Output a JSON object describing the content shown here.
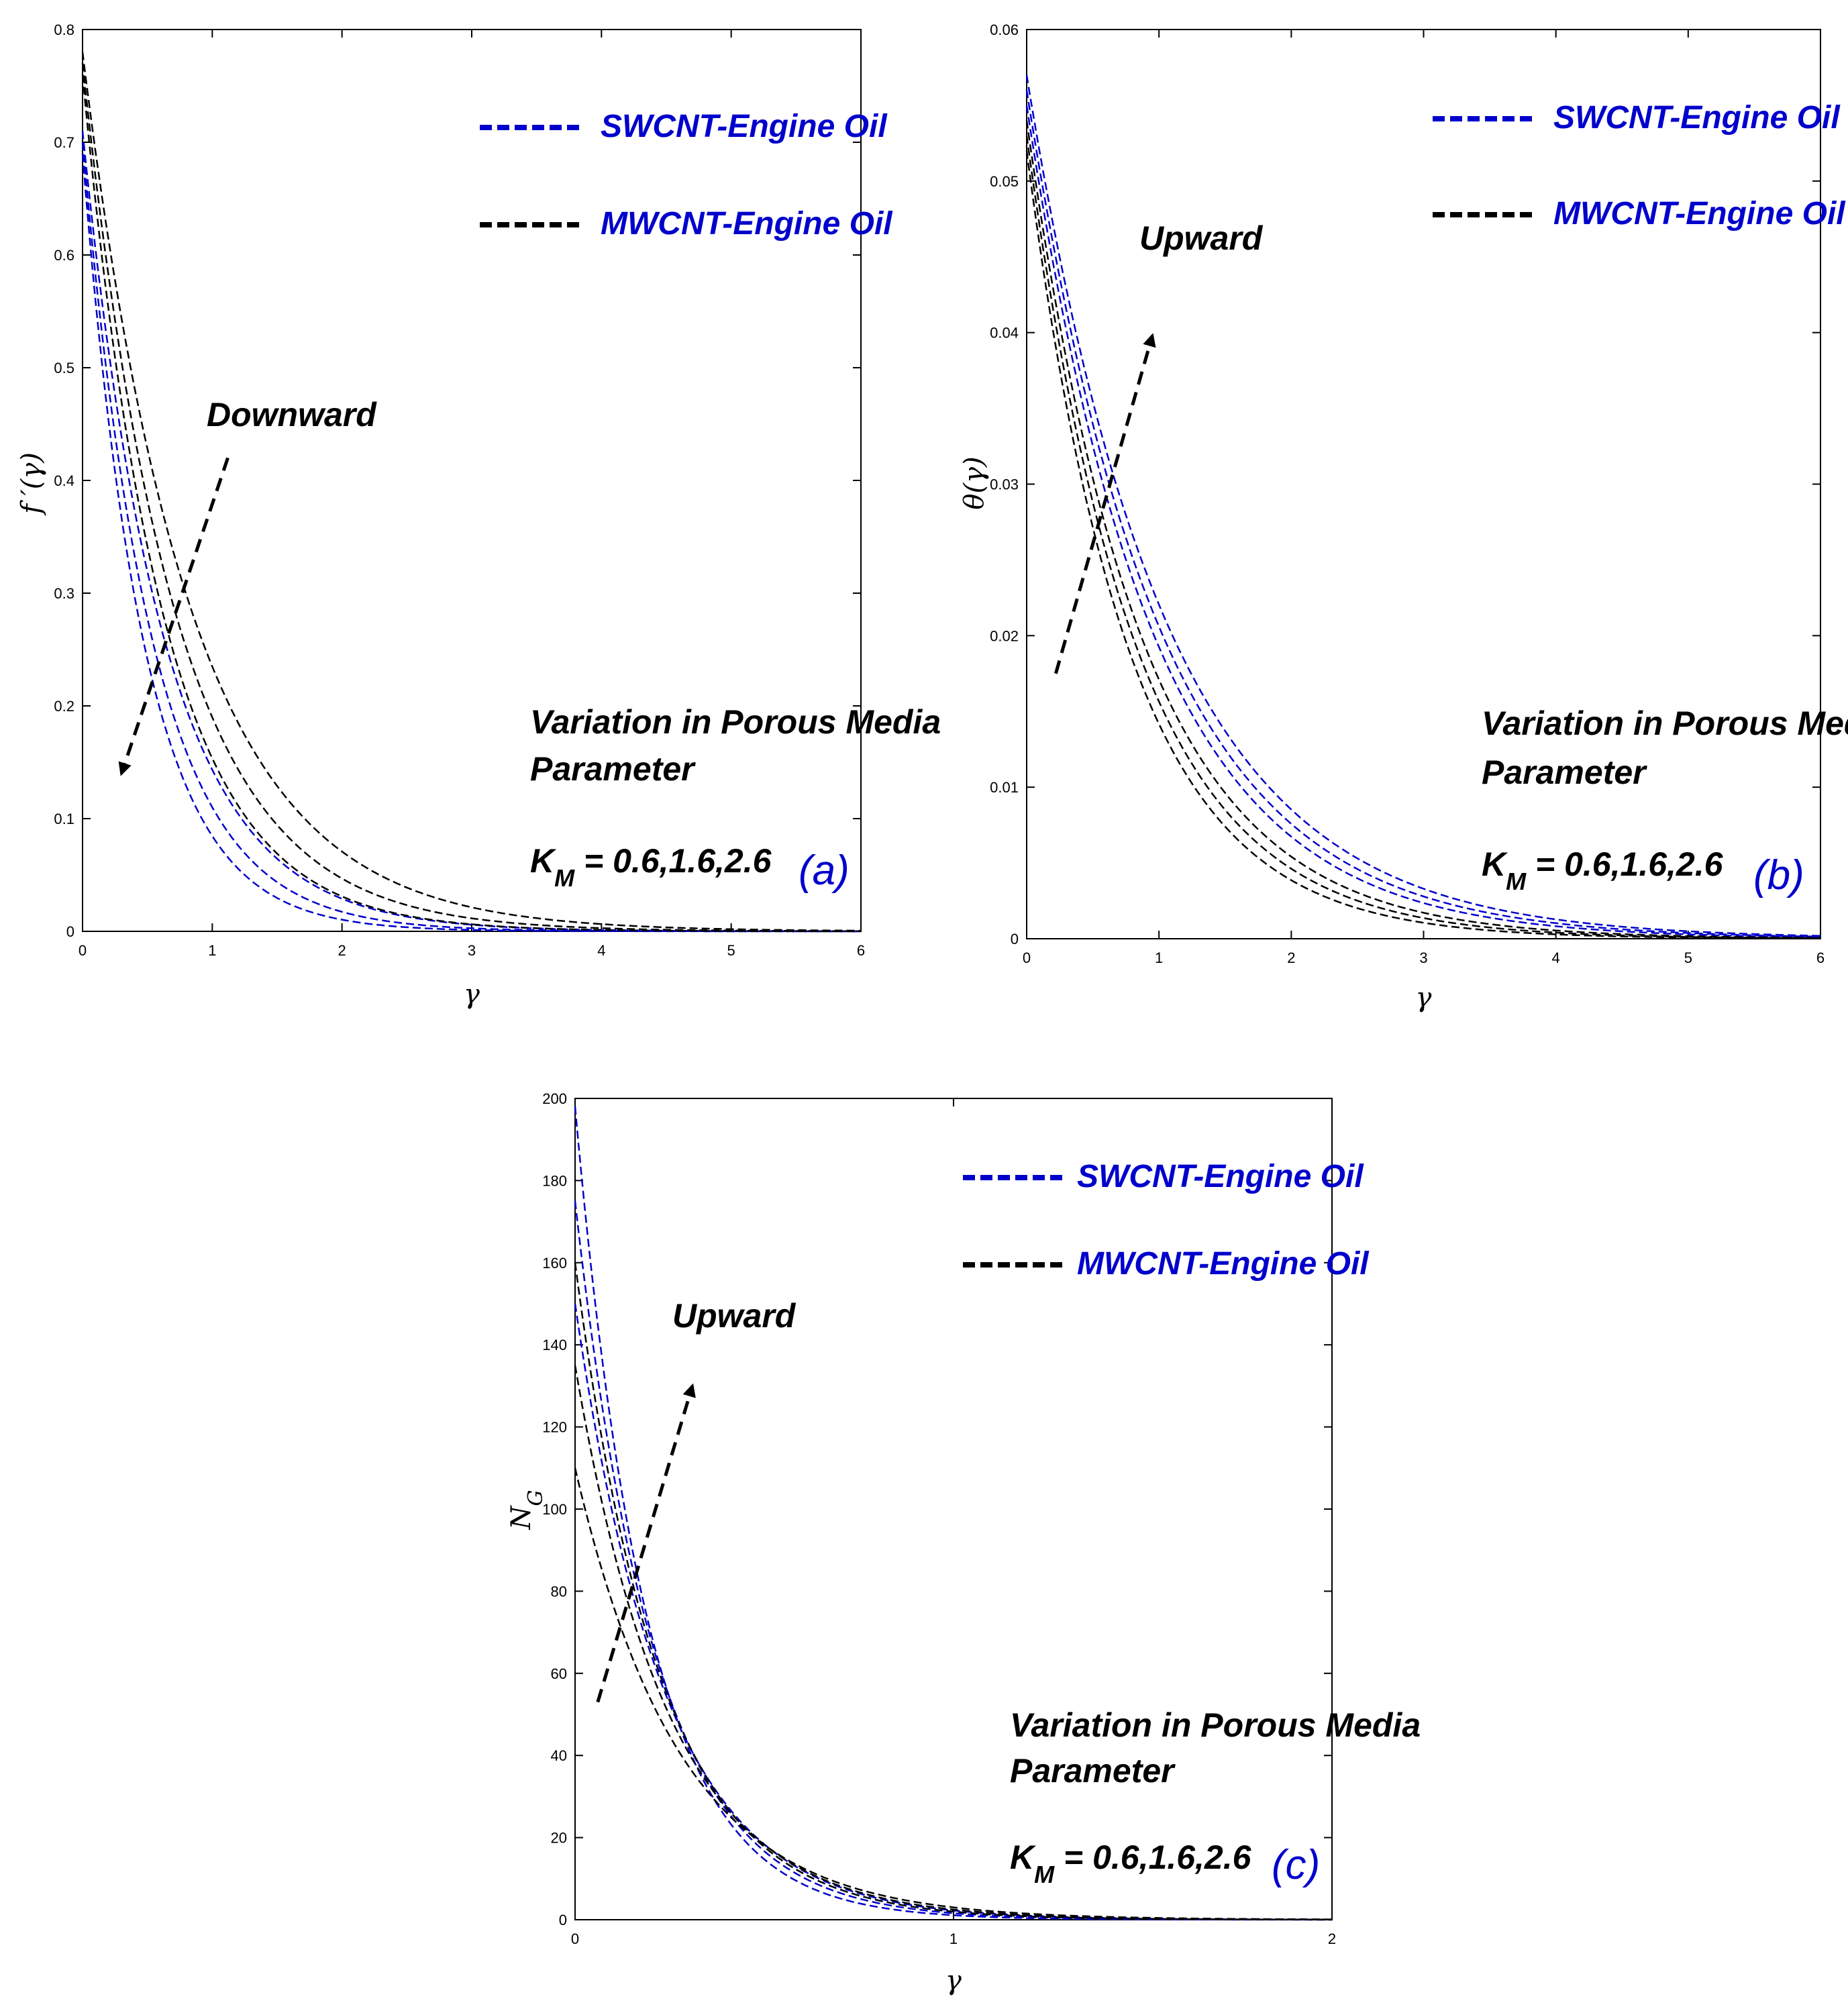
{
  "figure": {
    "legend_swcnt": "SWCNT-Engine Oil",
    "legend_mwcnt": "MWCNT-Engine Oil",
    "annotation_line1": "Variation in Porous Media",
    "annotation_line2": "Parameter",
    "km_symbol": "K",
    "km_subscript": "M",
    "km_values": " = 0.6,1.6,2.6"
  },
  "colors": {
    "swcnt": "#0000cc",
    "mwcnt": "#000000"
  },
  "chart_data": [
    {
      "type": "line",
      "panel_label": "(a)",
      "ylabel": "f ′(γ)",
      "xlabel": "γ",
      "xlim": [
        0,
        6
      ],
      "ylim": [
        0,
        0.8
      ],
      "xticks": [
        0,
        1,
        2,
        3,
        4,
        5,
        6
      ],
      "yticks": [
        0,
        0.1,
        0.2,
        0.3,
        0.4,
        0.5,
        0.6,
        0.7,
        0.8
      ],
      "trend_label": "Downward",
      "trend_arrow": {
        "from": [
          1.12,
          0.42
        ],
        "to": [
          0.3,
          0.14
        ]
      },
      "series": [
        {
          "name": "SWCNT-Engine Oil",
          "K_M": 0.6,
          "curve": "exp",
          "a": 0.71,
          "k": 1.6
        },
        {
          "name": "SWCNT-Engine Oil",
          "K_M": 1.6,
          "curve": "exp",
          "a": 0.7,
          "k": 1.85
        },
        {
          "name": "SWCNT-Engine Oil",
          "K_M": 2.6,
          "curve": "exp",
          "a": 0.69,
          "k": 2.1
        },
        {
          "name": "MWCNT-Engine Oil",
          "K_M": 0.6,
          "curve": "exp",
          "a": 0.78,
          "k": 1.2
        },
        {
          "name": "MWCNT-Engine Oil",
          "K_M": 1.6,
          "curve": "exp",
          "a": 0.77,
          "k": 1.4
        },
        {
          "name": "MWCNT-Engine Oil",
          "K_M": 2.6,
          "curve": "exp",
          "a": 0.76,
          "k": 1.6
        }
      ]
    },
    {
      "type": "line",
      "panel_label": "(b)",
      "ylabel": "θ(γ)",
      "xlabel": "γ",
      "xlim": [
        0,
        6
      ],
      "ylim": [
        0,
        0.06
      ],
      "xticks": [
        0,
        1,
        2,
        3,
        4,
        5,
        6
      ],
      "yticks": [
        0,
        0.01,
        0.02,
        0.03,
        0.04,
        0.05,
        0.06
      ],
      "trend_label": "Upward",
      "trend_arrow": {
        "from": [
          0.22,
          0.0175
        ],
        "to": [
          0.95,
          0.0398
        ]
      },
      "series": [
        {
          "name": "SWCNT-Engine Oil",
          "K_M": 0.6,
          "curve": "exp",
          "a": 0.055,
          "k": 1.05
        },
        {
          "name": "SWCNT-Engine Oil",
          "K_M": 1.6,
          "curve": "exp",
          "a": 0.056,
          "k": 1.0
        },
        {
          "name": "SWCNT-Engine Oil",
          "K_M": 2.6,
          "curve": "exp",
          "a": 0.057,
          "k": 0.95
        },
        {
          "name": "MWCNT-Engine Oil",
          "K_M": 0.6,
          "curve": "exp",
          "a": 0.052,
          "k": 1.3
        },
        {
          "name": "MWCNT-Engine Oil",
          "K_M": 1.6,
          "curve": "exp",
          "a": 0.053,
          "k": 1.22
        },
        {
          "name": "MWCNT-Engine Oil",
          "K_M": 2.6,
          "curve": "exp",
          "a": 0.054,
          "k": 1.15
        }
      ]
    },
    {
      "type": "line",
      "panel_label": "(c)",
      "ylabel": "N_G",
      "xlabel": "γ",
      "xlim": [
        0,
        2
      ],
      "ylim": [
        0,
        200
      ],
      "xticks": [
        0,
        1,
        2
      ],
      "yticks": [
        0,
        20,
        40,
        60,
        80,
        100,
        120,
        140,
        160,
        180,
        200
      ],
      "trend_label": "Upward",
      "trend_arrow": {
        "from": [
          0.06,
          53
        ],
        "to": [
          0.31,
          130
        ]
      },
      "series": [
        {
          "name": "SWCNT-Engine Oil",
          "K_M": 0.6,
          "curve": "exp",
          "a": 150,
          "k": 4.2
        },
        {
          "name": "SWCNT-Engine Oil",
          "K_M": 1.6,
          "curve": "exp",
          "a": 175,
          "k": 4.7
        },
        {
          "name": "SWCNT-Engine Oil",
          "K_M": 2.6,
          "curve": "exp",
          "a": 198,
          "k": 5.2
        },
        {
          "name": "MWCNT-Engine Oil",
          "K_M": 0.6,
          "curve": "exp",
          "a": 110,
          "k": 3.6
        },
        {
          "name": "MWCNT-Engine Oil",
          "K_M": 1.6,
          "curve": "exp",
          "a": 135,
          "k": 4.0
        },
        {
          "name": "MWCNT-Engine Oil",
          "K_M": 2.6,
          "curve": "exp",
          "a": 160,
          "k": 4.4
        }
      ]
    }
  ]
}
